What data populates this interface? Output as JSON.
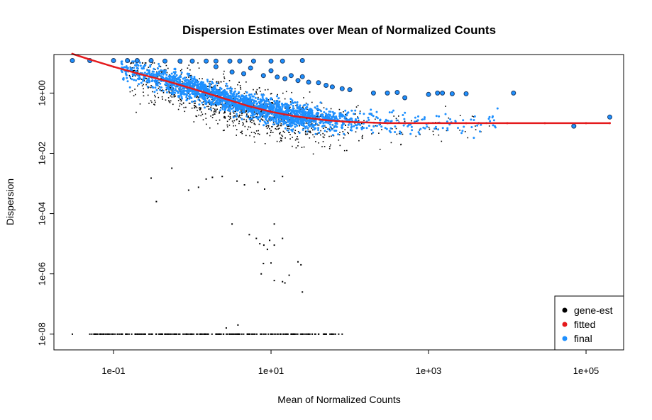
{
  "chart_data": {
    "type": "scatter",
    "title": "Dispersion Estimates over Mean of Normalized Counts",
    "xlabel": "Mean of Normalized Counts",
    "ylabel": "Dispersion",
    "x_scale": "log10",
    "y_scale": "log10",
    "xlim": [
      0.0175,
      300000
    ],
    "ylim": [
      3e-09,
      19.0
    ],
    "x_ticks": [
      {
        "value": 0.1,
        "label": "1e-01"
      },
      {
        "value": 10,
        "label": "1e+01"
      },
      {
        "value": 1000,
        "label": "1e+03"
      },
      {
        "value": 100000,
        "label": "1e+05"
      }
    ],
    "y_ticks": [
      {
        "value": 1e-08,
        "label": "1e-08"
      },
      {
        "value": 1e-06,
        "label": "1e-06"
      },
      {
        "value": 0.0001,
        "label": "1e-04"
      },
      {
        "value": 0.01,
        "label": "1e-02"
      },
      {
        "value": 1,
        "label": "1e+00"
      }
    ],
    "grid": false,
    "legend": {
      "position": "bottom-right",
      "entries": [
        {
          "label": "gene-est",
          "color": "#000000"
        },
        {
          "label": "fitted",
          "color": "#e41a1c"
        },
        {
          "label": "final",
          "color": "#1e90ff"
        }
      ]
    },
    "series": [
      {
        "name": "gene-est",
        "color": "#000000",
        "description": "gene-wise dispersion estimates",
        "points": [
          [
            0.03,
            1e-08
          ],
          [
            0.05,
            1e-08
          ],
          [
            0.07,
            1e-08
          ],
          [
            0.09,
            1e-08
          ],
          [
            0.12,
            1e-08
          ],
          [
            0.15,
            1e-08
          ],
          [
            0.2,
            1e-08
          ],
          [
            0.25,
            1e-08
          ],
          [
            0.3,
            1e-08
          ],
          [
            0.4,
            1e-08
          ],
          [
            0.5,
            1e-08
          ],
          [
            0.6,
            1e-08
          ],
          [
            0.8,
            1e-08
          ],
          [
            1.0,
            1e-08
          ],
          [
            1.3,
            1e-08
          ],
          [
            1.6,
            1e-08
          ],
          [
            2.0,
            1e-08
          ],
          [
            2.5,
            1e-08
          ],
          [
            3.0,
            1e-08
          ],
          [
            4.0,
            1e-08
          ],
          [
            5.0,
            1e-08
          ],
          [
            6.0,
            1e-08
          ],
          [
            8.0,
            1e-08
          ],
          [
            10,
            1e-08
          ],
          [
            13,
            1e-08
          ],
          [
            16,
            1e-08
          ],
          [
            20,
            1e-08
          ],
          [
            25,
            1e-08
          ],
          [
            30,
            1e-08
          ],
          [
            40,
            1e-08
          ],
          [
            50,
            1e-08
          ],
          [
            60,
            1e-08
          ],
          [
            80,
            1e-08
          ],
          [
            2.7,
            1.6e-08
          ],
          [
            3.8,
            2e-08
          ],
          [
            0.3,
            0.0015
          ],
          [
            0.35,
            0.00025
          ],
          [
            0.55,
            0.0032
          ],
          [
            0.9,
            0.0006
          ],
          [
            1.2,
            0.00075
          ],
          [
            1.5,
            0.0014
          ],
          [
            1.8,
            0.0016
          ],
          [
            2.4,
            0.0017
          ],
          [
            3.7,
            0.0012
          ],
          [
            4.6,
            0.0009
          ],
          [
            6.8,
            0.0011
          ],
          [
            8.3,
            0.00065
          ],
          [
            11,
            0.0012
          ],
          [
            14,
            0.0017
          ],
          [
            3.2,
            4.5e-05
          ],
          [
            5.3,
            2e-05
          ],
          [
            6.5,
            1.5e-05
          ],
          [
            7.2,
            1e-05
          ],
          [
            8.1,
            9e-06
          ],
          [
            9.6,
            1.3e-05
          ],
          [
            11,
            9e-06
          ],
          [
            14,
            1.5e-05
          ],
          [
            11,
            4.5e-05
          ],
          [
            9.0,
            6.5e-06
          ],
          [
            8.0,
            2.2e-06
          ],
          [
            10,
            2.3e-06
          ],
          [
            11,
            6e-07
          ],
          [
            15,
            5e-07
          ],
          [
            17,
            9e-07
          ],
          [
            22,
            2.5e-06
          ],
          [
            24,
            2e-06
          ],
          [
            25,
            2.5e-07
          ],
          [
            7.5,
            1e-06
          ],
          [
            14,
            5.5e-07
          ]
        ]
      },
      {
        "name": "fitted",
        "color": "#e41a1c",
        "description": "fitted trend curve",
        "points": [
          [
            0.03,
            20
          ],
          [
            0.05,
            13
          ],
          [
            0.1,
            7.5
          ],
          [
            0.2,
            4.5
          ],
          [
            0.5,
            2.4
          ],
          [
            1,
            1.4
          ],
          [
            2,
            0.8
          ],
          [
            5,
            0.38
          ],
          [
            10,
            0.24
          ],
          [
            20,
            0.17
          ],
          [
            50,
            0.125
          ],
          [
            100,
            0.11
          ],
          [
            300,
            0.1
          ],
          [
            1000,
            0.1
          ],
          [
            3000,
            0.1
          ],
          [
            10000,
            0.1
          ],
          [
            30000,
            0.1
          ],
          [
            100000,
            0.1
          ],
          [
            200000,
            0.1
          ]
        ]
      },
      {
        "name": "final",
        "color": "#1e90ff",
        "description": "final shrunken dispersion estimates",
        "outliers": [
          [
            0.03,
            12
          ],
          [
            0.05,
            12
          ],
          [
            0.1,
            12
          ],
          [
            0.15,
            12
          ],
          [
            0.2,
            12
          ],
          [
            0.3,
            12
          ],
          [
            0.45,
            11.5
          ],
          [
            0.7,
            11.5
          ],
          [
            1.0,
            11.5
          ],
          [
            1.5,
            11.5
          ],
          [
            2.0,
            11.5
          ],
          [
            3.0,
            11.5
          ],
          [
            4.0,
            11.5
          ],
          [
            6.0,
            11.5
          ],
          [
            10,
            11.5
          ],
          [
            14,
            11.5
          ],
          [
            25,
            12
          ],
          [
            2.0,
            7.5
          ],
          [
            3.2,
            5.0
          ],
          [
            4.5,
            4.4
          ],
          [
            5.5,
            6.8
          ],
          [
            8,
            3.8
          ],
          [
            10,
            5.5
          ],
          [
            12,
            3.4
          ],
          [
            15,
            3.0
          ],
          [
            18,
            3.8
          ],
          [
            22,
            2.6
          ],
          [
            25,
            3.5
          ],
          [
            30,
            2.3
          ],
          [
            40,
            2.2
          ],
          [
            50,
            1.8
          ],
          [
            60,
            1.6
          ],
          [
            80,
            1.4
          ],
          [
            100,
            1.3
          ],
          [
            200,
            1.0
          ],
          [
            300,
            1.0
          ],
          [
            400,
            1.05
          ],
          [
            500,
            0.7
          ],
          [
            1000,
            0.9
          ],
          [
            1300,
            1.0
          ],
          [
            1500,
            1.0
          ],
          [
            2000,
            0.95
          ],
          [
            3000,
            0.95
          ],
          [
            12000,
            1.0
          ],
          [
            70000,
            0.08
          ],
          [
            200000,
            0.16
          ]
        ]
      }
    ]
  }
}
